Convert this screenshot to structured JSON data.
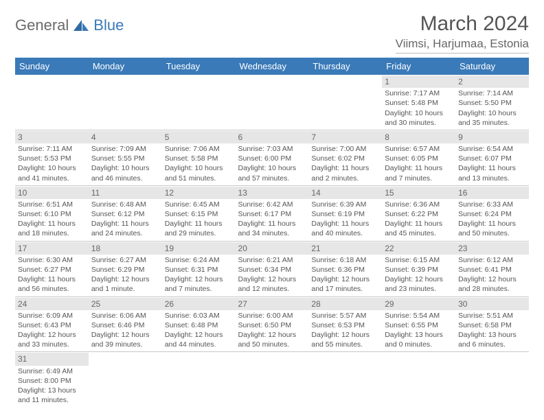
{
  "logo": {
    "text1": "General",
    "text2": "Blue"
  },
  "title": "March 2024",
  "location": "Viimsi, Harjumaa, Estonia",
  "colors": {
    "header_bg": "#3a7ab8",
    "header_text": "#ffffff",
    "daynum_bg": "#e6e6e6",
    "text": "#555555",
    "border": "#c8c8c8",
    "page_bg": "#ffffff"
  },
  "typography": {
    "title_fontsize": 30,
    "location_fontsize": 17,
    "weekday_fontsize": 13,
    "cell_fontsize": 10.5
  },
  "weekdays": [
    "Sunday",
    "Monday",
    "Tuesday",
    "Wednesday",
    "Thursday",
    "Friday",
    "Saturday"
  ],
  "weeks": [
    [
      null,
      null,
      null,
      null,
      null,
      {
        "n": "1",
        "sr": "Sunrise: 7:17 AM",
        "ss": "Sunset: 5:48 PM",
        "d1": "Daylight: 10 hours",
        "d2": "and 30 minutes."
      },
      {
        "n": "2",
        "sr": "Sunrise: 7:14 AM",
        "ss": "Sunset: 5:50 PM",
        "d1": "Daylight: 10 hours",
        "d2": "and 35 minutes."
      }
    ],
    [
      {
        "n": "3",
        "sr": "Sunrise: 7:11 AM",
        "ss": "Sunset: 5:53 PM",
        "d1": "Daylight: 10 hours",
        "d2": "and 41 minutes."
      },
      {
        "n": "4",
        "sr": "Sunrise: 7:09 AM",
        "ss": "Sunset: 5:55 PM",
        "d1": "Daylight: 10 hours",
        "d2": "and 46 minutes."
      },
      {
        "n": "5",
        "sr": "Sunrise: 7:06 AM",
        "ss": "Sunset: 5:58 PM",
        "d1": "Daylight: 10 hours",
        "d2": "and 51 minutes."
      },
      {
        "n": "6",
        "sr": "Sunrise: 7:03 AM",
        "ss": "Sunset: 6:00 PM",
        "d1": "Daylight: 10 hours",
        "d2": "and 57 minutes."
      },
      {
        "n": "7",
        "sr": "Sunrise: 7:00 AM",
        "ss": "Sunset: 6:02 PM",
        "d1": "Daylight: 11 hours",
        "d2": "and 2 minutes."
      },
      {
        "n": "8",
        "sr": "Sunrise: 6:57 AM",
        "ss": "Sunset: 6:05 PM",
        "d1": "Daylight: 11 hours",
        "d2": "and 7 minutes."
      },
      {
        "n": "9",
        "sr": "Sunrise: 6:54 AM",
        "ss": "Sunset: 6:07 PM",
        "d1": "Daylight: 11 hours",
        "d2": "and 13 minutes."
      }
    ],
    [
      {
        "n": "10",
        "sr": "Sunrise: 6:51 AM",
        "ss": "Sunset: 6:10 PM",
        "d1": "Daylight: 11 hours",
        "d2": "and 18 minutes."
      },
      {
        "n": "11",
        "sr": "Sunrise: 6:48 AM",
        "ss": "Sunset: 6:12 PM",
        "d1": "Daylight: 11 hours",
        "d2": "and 24 minutes."
      },
      {
        "n": "12",
        "sr": "Sunrise: 6:45 AM",
        "ss": "Sunset: 6:15 PM",
        "d1": "Daylight: 11 hours",
        "d2": "and 29 minutes."
      },
      {
        "n": "13",
        "sr": "Sunrise: 6:42 AM",
        "ss": "Sunset: 6:17 PM",
        "d1": "Daylight: 11 hours",
        "d2": "and 34 minutes."
      },
      {
        "n": "14",
        "sr": "Sunrise: 6:39 AM",
        "ss": "Sunset: 6:19 PM",
        "d1": "Daylight: 11 hours",
        "d2": "and 40 minutes."
      },
      {
        "n": "15",
        "sr": "Sunrise: 6:36 AM",
        "ss": "Sunset: 6:22 PM",
        "d1": "Daylight: 11 hours",
        "d2": "and 45 minutes."
      },
      {
        "n": "16",
        "sr": "Sunrise: 6:33 AM",
        "ss": "Sunset: 6:24 PM",
        "d1": "Daylight: 11 hours",
        "d2": "and 50 minutes."
      }
    ],
    [
      {
        "n": "17",
        "sr": "Sunrise: 6:30 AM",
        "ss": "Sunset: 6:27 PM",
        "d1": "Daylight: 11 hours",
        "d2": "and 56 minutes."
      },
      {
        "n": "18",
        "sr": "Sunrise: 6:27 AM",
        "ss": "Sunset: 6:29 PM",
        "d1": "Daylight: 12 hours",
        "d2": "and 1 minute."
      },
      {
        "n": "19",
        "sr": "Sunrise: 6:24 AM",
        "ss": "Sunset: 6:31 PM",
        "d1": "Daylight: 12 hours",
        "d2": "and 7 minutes."
      },
      {
        "n": "20",
        "sr": "Sunrise: 6:21 AM",
        "ss": "Sunset: 6:34 PM",
        "d1": "Daylight: 12 hours",
        "d2": "and 12 minutes."
      },
      {
        "n": "21",
        "sr": "Sunrise: 6:18 AM",
        "ss": "Sunset: 6:36 PM",
        "d1": "Daylight: 12 hours",
        "d2": "and 17 minutes."
      },
      {
        "n": "22",
        "sr": "Sunrise: 6:15 AM",
        "ss": "Sunset: 6:39 PM",
        "d1": "Daylight: 12 hours",
        "d2": "and 23 minutes."
      },
      {
        "n": "23",
        "sr": "Sunrise: 6:12 AM",
        "ss": "Sunset: 6:41 PM",
        "d1": "Daylight: 12 hours",
        "d2": "and 28 minutes."
      }
    ],
    [
      {
        "n": "24",
        "sr": "Sunrise: 6:09 AM",
        "ss": "Sunset: 6:43 PM",
        "d1": "Daylight: 12 hours",
        "d2": "and 33 minutes."
      },
      {
        "n": "25",
        "sr": "Sunrise: 6:06 AM",
        "ss": "Sunset: 6:46 PM",
        "d1": "Daylight: 12 hours",
        "d2": "and 39 minutes."
      },
      {
        "n": "26",
        "sr": "Sunrise: 6:03 AM",
        "ss": "Sunset: 6:48 PM",
        "d1": "Daylight: 12 hours",
        "d2": "and 44 minutes."
      },
      {
        "n": "27",
        "sr": "Sunrise: 6:00 AM",
        "ss": "Sunset: 6:50 PM",
        "d1": "Daylight: 12 hours",
        "d2": "and 50 minutes."
      },
      {
        "n": "28",
        "sr": "Sunrise: 5:57 AM",
        "ss": "Sunset: 6:53 PM",
        "d1": "Daylight: 12 hours",
        "d2": "and 55 minutes."
      },
      {
        "n": "29",
        "sr": "Sunrise: 5:54 AM",
        "ss": "Sunset: 6:55 PM",
        "d1": "Daylight: 13 hours",
        "d2": "and 0 minutes."
      },
      {
        "n": "30",
        "sr": "Sunrise: 5:51 AM",
        "ss": "Sunset: 6:58 PM",
        "d1": "Daylight: 13 hours",
        "d2": "and 6 minutes."
      }
    ],
    [
      {
        "n": "31",
        "sr": "Sunrise: 6:49 AM",
        "ss": "Sunset: 8:00 PM",
        "d1": "Daylight: 13 hours",
        "d2": "and 11 minutes."
      },
      null,
      null,
      null,
      null,
      null,
      null
    ]
  ]
}
